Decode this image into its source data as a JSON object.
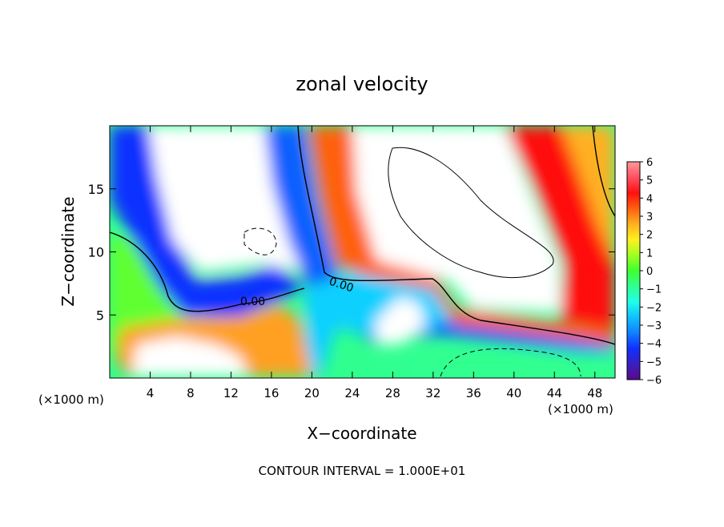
{
  "chart_data": {
    "type": "heatmap",
    "title": "zonal velocity",
    "xlabel": "X−coordinate",
    "ylabel": "Z−coordinate",
    "x_unit_left": "(×1000 m)",
    "x_unit_right": "(×1000 m)",
    "footer": "CONTOUR INTERVAL = 1.000E+01",
    "xlim": [
      0,
      50
    ],
    "ylim": [
      0,
      20
    ],
    "x_ticks": [
      4,
      8,
      12,
      16,
      20,
      24,
      28,
      32,
      36,
      40,
      44,
      48
    ],
    "x_tick_labels": [
      "4",
      "8",
      "12",
      "16",
      "20",
      "24",
      "28",
      "32",
      "36",
      "40",
      "44",
      "48"
    ],
    "y_ticks": [
      5,
      10,
      15
    ],
    "y_tick_labels": [
      "5",
      "10",
      "15"
    ],
    "contour_labels": [
      "0.00",
      "0.00"
    ],
    "colorbar": {
      "min": -6,
      "max": 6,
      "tick_labels": [
        "6",
        "5",
        "4",
        "3",
        "2",
        "1",
        "0",
        "−1",
        "−2",
        "−3",
        "−4",
        "−5",
        "−6"
      ],
      "colors": [
        "#5a0a8c",
        "#3b1ebf",
        "#1030ff",
        "#1080ff",
        "#10c0ff",
        "#20ffe8",
        "#30ff90",
        "#40ff30",
        "#a0ff20",
        "#fff020",
        "#ffb020",
        "#ff6010",
        "#ff1010",
        "#ff5060",
        "#ff9898"
      ]
    }
  }
}
